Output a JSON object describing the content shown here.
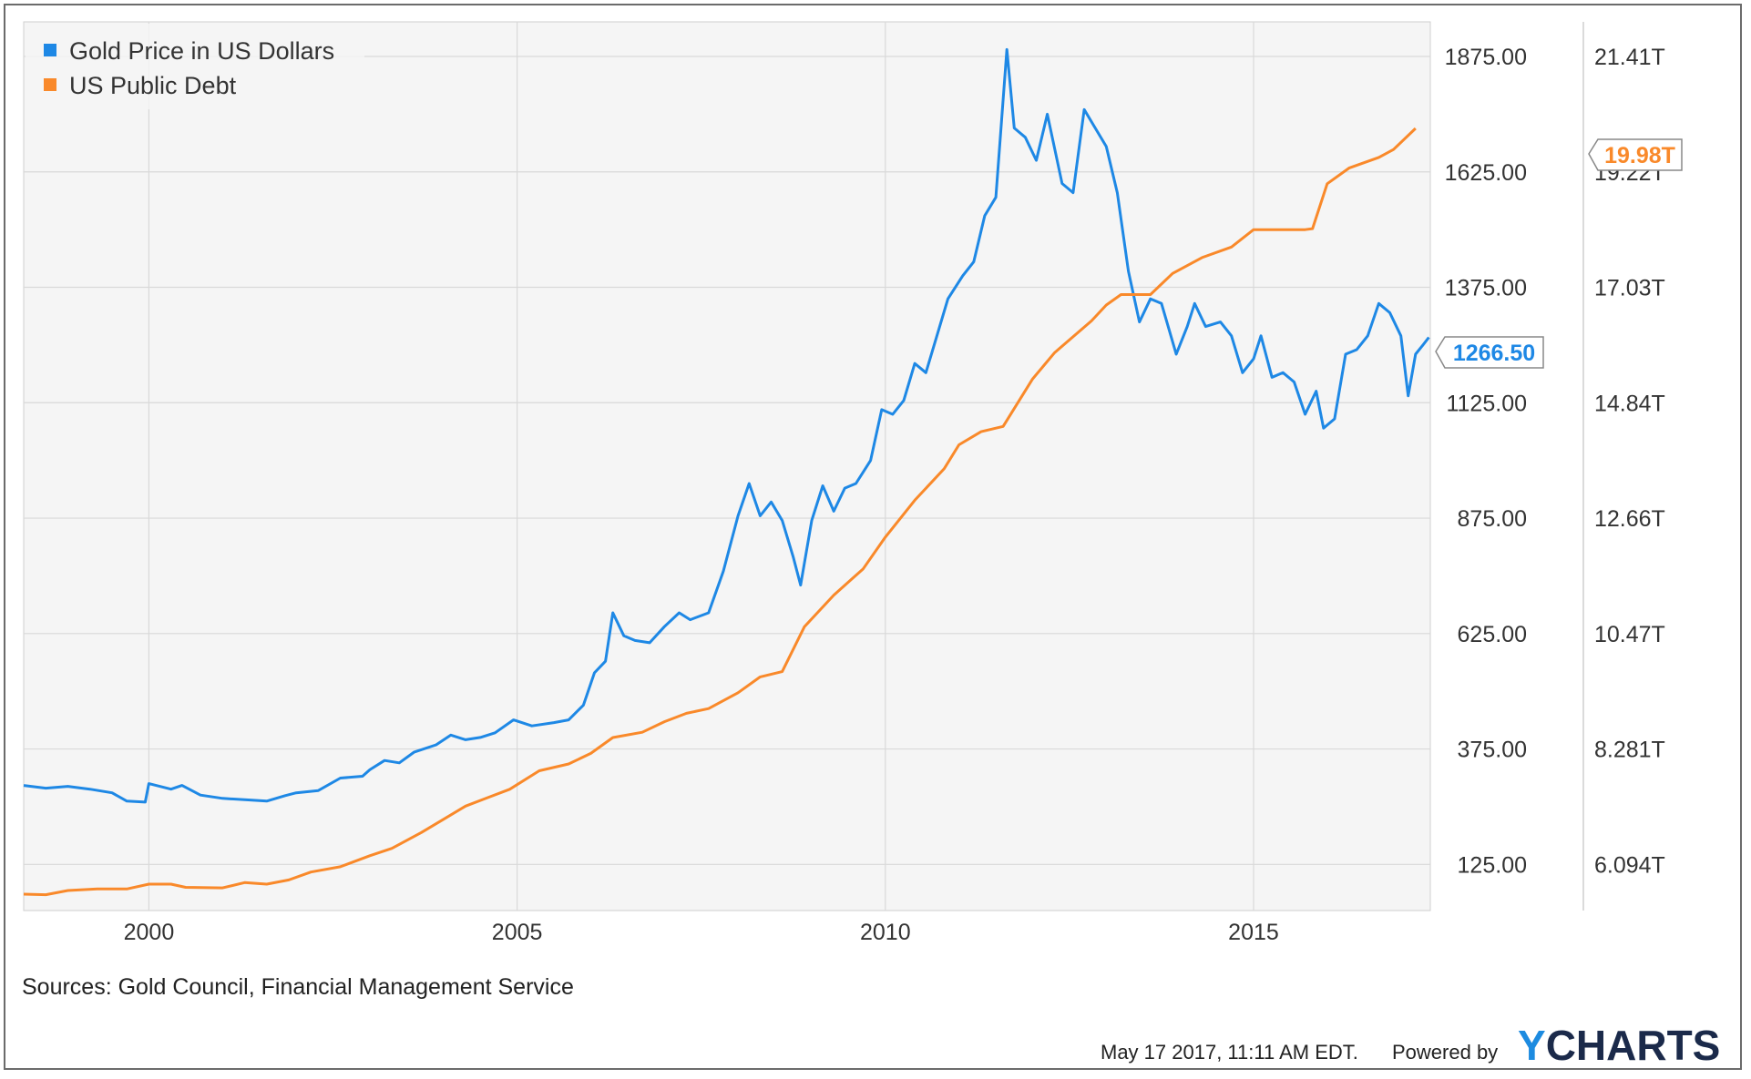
{
  "chart_data": {
    "type": "line",
    "legend": [
      "Gold Price in US Dollars",
      "US Public Debt"
    ],
    "legend_position": "top-left",
    "grid": true,
    "x_tick_labels": [
      "2000",
      "2005",
      "2010",
      "2015"
    ],
    "xlim": [
      1998.3,
      2017.4
    ],
    "y_left_ticks": [
      "125.00",
      "375.00",
      "625.00",
      "875.00",
      "1125.00",
      "1375.00",
      "1625.00",
      "1875.00"
    ],
    "ylim": [
      25,
      1950
    ],
    "y_right_ticks": [
      "6.094T",
      "8.281T",
      "10.47T",
      "12.66T",
      "14.84T",
      "17.03T",
      "19.22T",
      "21.41T"
    ],
    "y2lim": [
      5.22,
      22.07
    ],
    "colors": {
      "gold": "#1e88e5",
      "debt": "#f9892a"
    },
    "series": [
      {
        "name": "Gold Price in US Dollars",
        "axis": "left",
        "last_value_label": "1266.50",
        "points": [
          [
            1998.3,
            296
          ],
          [
            1998.6,
            290
          ],
          [
            1998.9,
            294
          ],
          [
            1999.2,
            288
          ],
          [
            1999.5,
            280
          ],
          [
            1999.7,
            262
          ],
          [
            1999.95,
            260
          ],
          [
            2000.0,
            300
          ],
          [
            2000.3,
            288
          ],
          [
            2000.45,
            296
          ],
          [
            2000.7,
            275
          ],
          [
            2001.0,
            268
          ],
          [
            2001.3,
            265
          ],
          [
            2001.6,
            262
          ],
          [
            2001.85,
            274
          ],
          [
            2002.0,
            280
          ],
          [
            2002.3,
            285
          ],
          [
            2002.6,
            312
          ],
          [
            2002.9,
            316
          ],
          [
            2003.0,
            330
          ],
          [
            2003.2,
            350
          ],
          [
            2003.4,
            345
          ],
          [
            2003.6,
            368
          ],
          [
            2003.9,
            384
          ],
          [
            2004.1,
            405
          ],
          [
            2004.3,
            395
          ],
          [
            2004.5,
            400
          ],
          [
            2004.7,
            410
          ],
          [
            2004.95,
            438
          ],
          [
            2005.2,
            425
          ],
          [
            2005.5,
            432
          ],
          [
            2005.7,
            438
          ],
          [
            2005.9,
            470
          ],
          [
            2006.05,
            540
          ],
          [
            2006.2,
            565
          ],
          [
            2006.3,
            670
          ],
          [
            2006.45,
            620
          ],
          [
            2006.6,
            610
          ],
          [
            2006.8,
            605
          ],
          [
            2007.0,
            640
          ],
          [
            2007.2,
            670
          ],
          [
            2007.35,
            655
          ],
          [
            2007.6,
            670
          ],
          [
            2007.8,
            760
          ],
          [
            2008.0,
            880
          ],
          [
            2008.15,
            950
          ],
          [
            2008.3,
            880
          ],
          [
            2008.45,
            910
          ],
          [
            2008.6,
            870
          ],
          [
            2008.75,
            790
          ],
          [
            2008.85,
            730
          ],
          [
            2009.0,
            870
          ],
          [
            2009.15,
            945
          ],
          [
            2009.3,
            890
          ],
          [
            2009.45,
            940
          ],
          [
            2009.6,
            950
          ],
          [
            2009.8,
            1000
          ],
          [
            2009.95,
            1110
          ],
          [
            2010.1,
            1100
          ],
          [
            2010.25,
            1130
          ],
          [
            2010.4,
            1210
          ],
          [
            2010.55,
            1190
          ],
          [
            2010.7,
            1270
          ],
          [
            2010.85,
            1350
          ],
          [
            2011.05,
            1400
          ],
          [
            2011.2,
            1430
          ],
          [
            2011.35,
            1530
          ],
          [
            2011.5,
            1570
          ],
          [
            2011.65,
            1890
          ],
          [
            2011.75,
            1720
          ],
          [
            2011.9,
            1700
          ],
          [
            2012.05,
            1650
          ],
          [
            2012.2,
            1750
          ],
          [
            2012.4,
            1600
          ],
          [
            2012.55,
            1580
          ],
          [
            2012.7,
            1760
          ],
          [
            2012.85,
            1720
          ],
          [
            2013.0,
            1680
          ],
          [
            2013.15,
            1580
          ],
          [
            2013.3,
            1410
          ],
          [
            2013.45,
            1300
          ],
          [
            2013.6,
            1350
          ],
          [
            2013.75,
            1340
          ],
          [
            2013.95,
            1230
          ],
          [
            2014.1,
            1290
          ],
          [
            2014.2,
            1340
          ],
          [
            2014.35,
            1290
          ],
          [
            2014.55,
            1300
          ],
          [
            2014.7,
            1270
          ],
          [
            2014.85,
            1190
          ],
          [
            2015.0,
            1220
          ],
          [
            2015.1,
            1270
          ],
          [
            2015.25,
            1180
          ],
          [
            2015.4,
            1190
          ],
          [
            2015.55,
            1170
          ],
          [
            2015.7,
            1100
          ],
          [
            2015.85,
            1150
          ],
          [
            2015.95,
            1070
          ],
          [
            2016.1,
            1090
          ],
          [
            2016.25,
            1230
          ],
          [
            2016.4,
            1240
          ],
          [
            2016.55,
            1270
          ],
          [
            2016.7,
            1340
          ],
          [
            2016.85,
            1320
          ],
          [
            2017.0,
            1270
          ],
          [
            2017.1,
            1140
          ],
          [
            2017.2,
            1230
          ],
          [
            2017.3,
            1250
          ],
          [
            2017.38,
            1266.5
          ]
        ]
      },
      {
        "name": "US Public Debt",
        "axis": "right",
        "last_value_label": "19.98T",
        "points": [
          [
            1998.3,
            5.53
          ],
          [
            1998.6,
            5.52
          ],
          [
            1998.9,
            5.6
          ],
          [
            1999.3,
            5.63
          ],
          [
            1999.7,
            5.63
          ],
          [
            2000.0,
            5.72
          ],
          [
            2000.3,
            5.72
          ],
          [
            2000.5,
            5.66
          ],
          [
            2001.0,
            5.65
          ],
          [
            2001.3,
            5.75
          ],
          [
            2001.6,
            5.72
          ],
          [
            2001.9,
            5.8
          ],
          [
            2002.2,
            5.95
          ],
          [
            2002.6,
            6.05
          ],
          [
            2003.0,
            6.26
          ],
          [
            2003.3,
            6.4
          ],
          [
            2003.7,
            6.7
          ],
          [
            2004.0,
            6.95
          ],
          [
            2004.3,
            7.2
          ],
          [
            2004.6,
            7.36
          ],
          [
            2004.9,
            7.52
          ],
          [
            2005.3,
            7.87
          ],
          [
            2005.7,
            8.0
          ],
          [
            2006.0,
            8.2
          ],
          [
            2006.3,
            8.5
          ],
          [
            2006.7,
            8.6
          ],
          [
            2007.0,
            8.8
          ],
          [
            2007.3,
            8.96
          ],
          [
            2007.6,
            9.05
          ],
          [
            2008.0,
            9.35
          ],
          [
            2008.3,
            9.65
          ],
          [
            2008.6,
            9.75
          ],
          [
            2008.9,
            10.6
          ],
          [
            2009.3,
            11.2
          ],
          [
            2009.7,
            11.7
          ],
          [
            2010.0,
            12.3
          ],
          [
            2010.4,
            13.0
          ],
          [
            2010.8,
            13.6
          ],
          [
            2011.0,
            14.05
          ],
          [
            2011.3,
            14.3
          ],
          [
            2011.6,
            14.4
          ],
          [
            2012.0,
            15.3
          ],
          [
            2012.3,
            15.8
          ],
          [
            2012.8,
            16.4
          ],
          [
            2013.0,
            16.7
          ],
          [
            2013.2,
            16.9
          ],
          [
            2013.6,
            16.9
          ],
          [
            2013.9,
            17.3
          ],
          [
            2014.3,
            17.6
          ],
          [
            2014.7,
            17.8
          ],
          [
            2015.0,
            18.13
          ],
          [
            2015.7,
            18.13
          ],
          [
            2015.8,
            18.15
          ],
          [
            2016.0,
            19.0
          ],
          [
            2016.3,
            19.3
          ],
          [
            2016.7,
            19.5
          ],
          [
            2016.9,
            19.65
          ],
          [
            2017.2,
            20.05
          ]
        ]
      }
    ],
    "source": "Sources: Gold Council, Financial Management Service",
    "timestamp": "May 17 2017, 11:11 AM EDT.",
    "powered_by": "Powered by",
    "brand": "YCHARTS"
  }
}
